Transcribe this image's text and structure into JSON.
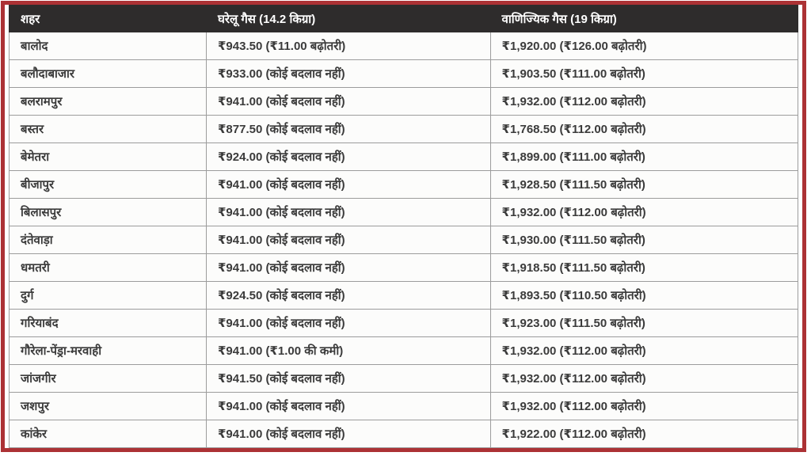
{
  "chart_data": {
    "type": "table",
    "title": "",
    "columns": [
      "शहर",
      "घरेलू गैस (14.2 किग्रा)",
      "वाणिज्यिक गैस (19 किग्रा)"
    ],
    "rows": [
      [
        "बालोद",
        "₹943.50 (₹11.00 बढ़ोतरी)",
        "₹1,920.00 (₹126.00 बढ़ोतरी)"
      ],
      [
        "बलौदाबाजार",
        "₹933.00 (कोई बदलाव नहीं)",
        "₹1,903.50 (₹111.00 बढ़ोतरी)"
      ],
      [
        "बलरामपुर",
        "₹941.00 (कोई बदलाव नहीं)",
        "₹1,932.00 (₹112.00 बढ़ोतरी)"
      ],
      [
        "बस्तर",
        "₹877.50 (कोई बदलाव नहीं)",
        "₹1,768.50 (₹112.00 बढ़ोतरी)"
      ],
      [
        "बेमेतरा",
        "₹924.00 (कोई बदलाव नहीं)",
        "₹1,899.00 (₹111.00 बढ़ोतरी)"
      ],
      [
        "बीजापुर",
        "₹941.00 (कोई बदलाव नहीं)",
        "₹1,928.50 (₹111.50 बढ़ोतरी)"
      ],
      [
        "बिलासपुर",
        "₹941.00 (कोई बदलाव नहीं)",
        "₹1,932.00 (₹112.00 बढ़ोतरी)"
      ],
      [
        "दंतेवाड़ा",
        "₹941.00 (कोई बदलाव नहीं)",
        "₹1,930.00 (₹111.50 बढ़ोतरी)"
      ],
      [
        "धमतरी",
        "₹941.00 (कोई बदलाव नहीं)",
        "₹1,918.50 (₹111.50 बढ़ोतरी)"
      ],
      [
        "दुर्ग",
        "₹924.50 (कोई बदलाव नहीं)",
        "₹1,893.50 (₹110.50 बढ़ोतरी)"
      ],
      [
        "गरियाबंद",
        "₹941.00 (कोई बदलाव नहीं)",
        "₹1,923.00 (₹111.50 बढ़ोतरी)"
      ],
      [
        "गौरेला-पेंड्रा-मरवाही",
        "₹941.00 (₹1.00 की कमी)",
        "₹1,932.00 (₹112.00 बढ़ोतरी)"
      ],
      [
        "जांजगीर",
        "₹941.50 (कोई बदलाव नहीं)",
        "₹1,932.00 (₹112.00 बढ़ोतरी)"
      ],
      [
        "जशपुर",
        "₹941.00 (कोई बदलाव नहीं)",
        "₹1,932.00 (₹112.00 बढ़ोतरी)"
      ],
      [
        "कांकेर",
        "₹941.00 (कोई बदलाव नहीं)",
        "₹1,922.00 (₹112.00 बढ़ोतरी)"
      ]
    ],
    "layout": {
      "legend": "none",
      "grid": "cell-borders"
    }
  },
  "colors": {
    "frame_border": "#ac3235",
    "header_bg": "#2e2c2c",
    "header_text": "#ffffff",
    "cell_bg": "#fcfcfb",
    "cell_border": "#9c9c9c",
    "cell_text": "#3b3b3b"
  }
}
